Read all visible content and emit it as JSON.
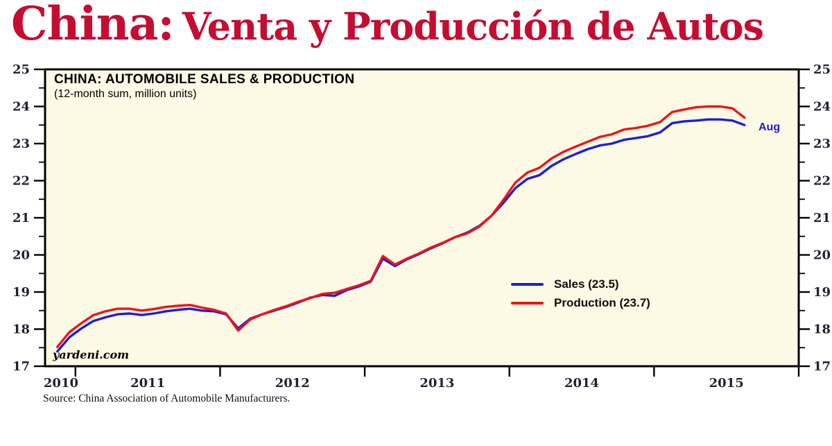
{
  "header": {
    "title_prefix": "China:",
    "title_rest": "Venta y Producción de Autos",
    "accent_color": "#C50D32"
  },
  "chart_data": {
    "type": "line",
    "title": "CHINA: AUTOMOBILE SALES & PRODUCTION",
    "subtitle": "(12-month sum, million units)",
    "watermark": "yardeni.com",
    "end_label": "Aug",
    "end_label_color": "#1C1CE0",
    "plot_bg": "#FCF9E4",
    "axis_color": "#000000",
    "tick_label_color": "#1e2130",
    "x_domain": [
      2010.79,
      2016.0
    ],
    "ylim": [
      17,
      25
    ],
    "y_major_step": 1,
    "y_minor_step": 0.5,
    "x_ticks": [
      2011,
      2012,
      2013,
      2014,
      2015,
      2016
    ],
    "x_labels": [
      {
        "text": "2010",
        "t": 2010.9
      },
      {
        "text": "2011",
        "t": 2011.5
      },
      {
        "text": "2012",
        "t": 2012.5
      },
      {
        "text": "2013",
        "t": 2013.5
      },
      {
        "text": "2014",
        "t": 2014.5
      },
      {
        "text": "2015",
        "t": 2015.5
      }
    ],
    "x_start": 2010.875,
    "x_interval_years": 0.0833333,
    "legend": [
      {
        "label": "Sales (23.5)",
        "color": "#1C1CE0"
      },
      {
        "label": "Production (23.7)",
        "color": "#EE1414"
      }
    ],
    "series": [
      {
        "name": "Sales",
        "color": "#1C1CE0",
        "values": [
          17.4,
          17.78,
          18.02,
          18.22,
          18.32,
          18.4,
          18.42,
          18.38,
          18.42,
          18.48,
          18.52,
          18.55,
          18.5,
          18.48,
          18.4,
          18.02,
          18.28,
          18.4,
          18.5,
          18.6,
          18.72,
          18.85,
          18.92,
          18.9,
          19.05,
          19.15,
          19.28,
          19.9,
          19.7,
          19.88,
          20.02,
          20.18,
          20.32,
          20.48,
          20.6,
          20.78,
          21.05,
          21.4,
          21.8,
          22.05,
          22.15,
          22.4,
          22.58,
          22.72,
          22.85,
          22.95,
          23.0,
          23.1,
          23.15,
          23.2,
          23.3,
          23.55,
          23.6,
          23.62,
          23.65,
          23.65,
          23.62,
          23.5
        ]
      },
      {
        "name": "Production",
        "color": "#EE1414",
        "values": [
          17.52,
          17.92,
          18.16,
          18.38,
          18.48,
          18.55,
          18.55,
          18.5,
          18.54,
          18.6,
          18.63,
          18.65,
          18.58,
          18.52,
          18.42,
          17.96,
          18.26,
          18.4,
          18.52,
          18.62,
          18.74,
          18.84,
          18.95,
          18.98,
          19.08,
          19.18,
          19.3,
          19.97,
          19.74,
          19.9,
          20.04,
          20.2,
          20.33,
          20.48,
          20.58,
          20.76,
          21.05,
          21.48,
          21.95,
          22.22,
          22.35,
          22.6,
          22.78,
          22.92,
          23.05,
          23.18,
          23.25,
          23.38,
          23.42,
          23.48,
          23.58,
          23.85,
          23.92,
          23.98,
          24.0,
          24.0,
          23.95,
          23.7
        ]
      }
    ]
  },
  "footer": {
    "source": "Source: China Association of Automobile Manufacturers."
  }
}
